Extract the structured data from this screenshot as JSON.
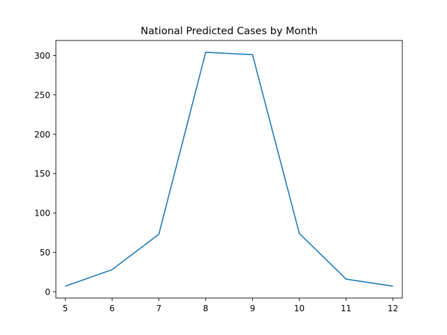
{
  "chart_data": {
    "type": "line",
    "title": "National Predicted Cases by Month",
    "xlabel": "",
    "ylabel": "",
    "x": [
      5,
      6,
      7,
      8,
      9,
      10,
      11,
      12
    ],
    "series": [
      {
        "values": [
          7,
          28,
          73,
          304,
          301,
          74,
          16,
          7
        ],
        "color": "#1f77b4"
      }
    ],
    "xlim": [
      4.8,
      12.2
    ],
    "ylim": [
      -8,
      319
    ],
    "xticks": [
      5,
      6,
      7,
      8,
      9,
      10,
      11,
      12
    ],
    "yticks": [
      0,
      50,
      100,
      150,
      200,
      250,
      300
    ],
    "grid": false,
    "legend": "none"
  }
}
